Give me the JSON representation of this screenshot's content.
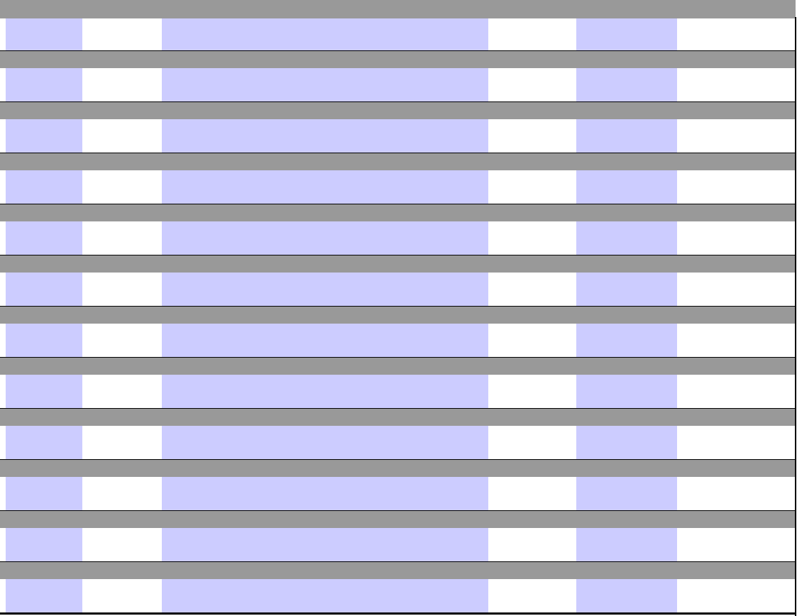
{
  "table": {
    "row_count": 12,
    "colors": {
      "header_band": "#999999",
      "shaded_cell": "#ccccff",
      "plain_cell": "#ffffff",
      "border": "#000000"
    },
    "columns": [
      {
        "shade": "plain"
      },
      {
        "shade": "shaded"
      },
      {
        "shade": "plain"
      },
      {
        "shade": "shaded"
      },
      {
        "shade": "plain"
      },
      {
        "shade": "shaded"
      },
      {
        "shade": "plain"
      }
    ]
  }
}
